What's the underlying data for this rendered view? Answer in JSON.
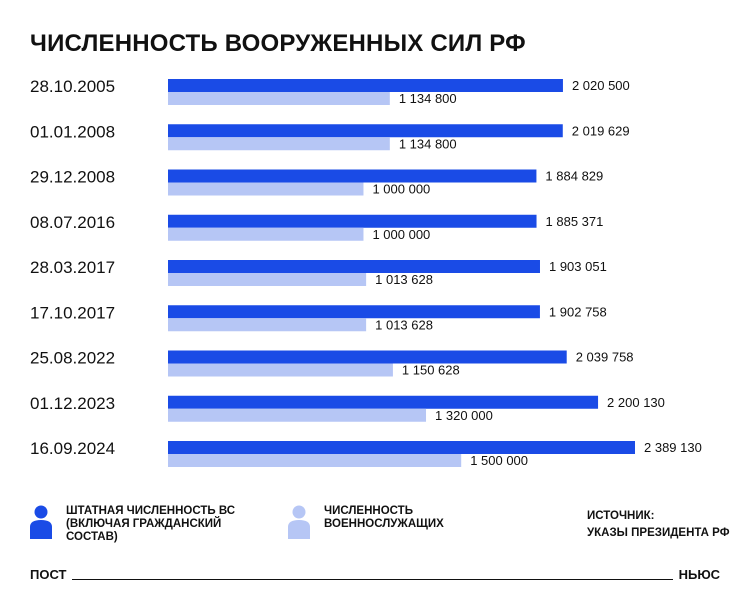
{
  "title": "ЧИСЛЕННОСТЬ ВООРУЖЕННЫХ СИЛ РФ",
  "colors": {
    "primary": "#1a4be6",
    "secondary": "#b6c6f5"
  },
  "chart_data": {
    "type": "bar",
    "orientation": "horizontal",
    "categories": [
      "28.10.2005",
      "01.01.2008",
      "29.12.2008",
      "08.07.2016",
      "28.03.2017",
      "17.10.2017",
      "25.08.2022",
      "01.12.2023",
      "16.09.2024"
    ],
    "series": [
      {
        "name": "ШТАТНАЯ ЧИСЛЕННОСТЬ ВС\n(ВКЛЮЧАЯ ГРАЖДАНСКИЙ\nСОСТАВ)",
        "values": [
          2020500,
          2019629,
          1884829,
          1885371,
          1903051,
          1902758,
          2039758,
          2200130,
          2389130
        ],
        "labels": [
          "2 020 500",
          "2 019 629",
          "1 884 829",
          "1 885 371",
          "1 903 051",
          "1 902 758",
          "2 039 758",
          "2 200 130",
          "2 389 130"
        ]
      },
      {
        "name": "ЧИСЛЕННОСТЬ\nВОЕННОСЛУЖАЩИХ",
        "values": [
          1134800,
          1134800,
          1000000,
          1000000,
          1013628,
          1013628,
          1150628,
          1320000,
          1500000
        ],
        "labels": [
          "1 134 800",
          "1 134 800",
          "1 000 000",
          "1 000 000",
          "1 013 628",
          "1 013 628",
          "1 150 628",
          "1 320 000",
          "1 500 000"
        ]
      }
    ]
  },
  "source": {
    "label": "ИСТОЧНИК:",
    "text": "УКАЗЫ ПРЕЗИДЕНТА РФ"
  },
  "footer": {
    "left": "ПОСТ",
    "right": "НЬЮС"
  },
  "icons": {
    "legend_primary": "person-icon",
    "legend_secondary": "person-icon"
  }
}
